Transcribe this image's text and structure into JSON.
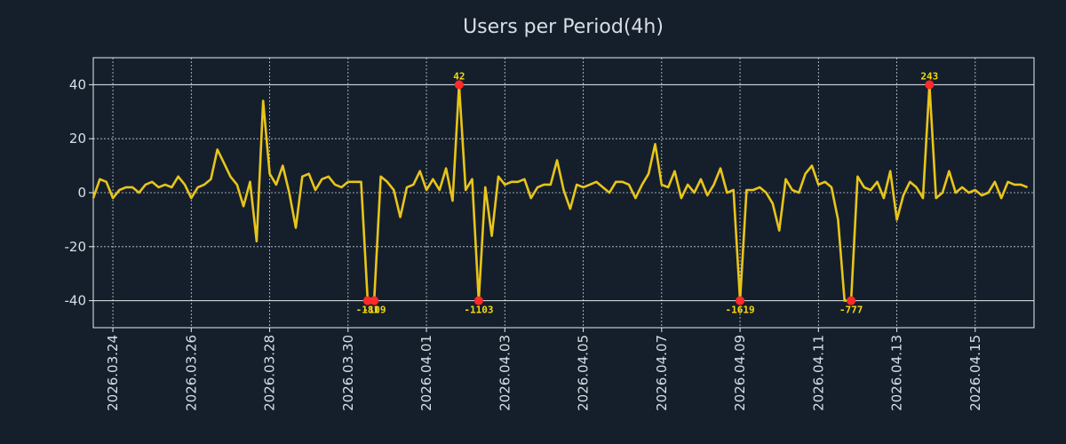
{
  "chart_data": {
    "type": "line",
    "title": "Users per Period(4h)",
    "xlabel": "",
    "ylabel": "",
    "ylim": [
      -50,
      50
    ],
    "yticks": [
      40,
      20,
      0,
      -20,
      -40
    ],
    "ytick_labels": [
      "40",
      "20",
      "0",
      "-20",
      "-40"
    ],
    "xlim": [
      0,
      144
    ],
    "xticks": [
      {
        "index": 3,
        "label": "2026.03.24"
      },
      {
        "index": 15,
        "label": "2026.03.26"
      },
      {
        "index": 27,
        "label": "2026.03.28"
      },
      {
        "index": 39,
        "label": "2026.03.30"
      },
      {
        "index": 51,
        "label": "2026.04.01"
      },
      {
        "index": 63,
        "label": "2026.04.03"
      },
      {
        "index": 75,
        "label": "2026.04.05"
      },
      {
        "index": 87,
        "label": "2026.04.07"
      },
      {
        "index": 99,
        "label": "2026.04.09"
      },
      {
        "index": 111,
        "label": "2026.04.11"
      },
      {
        "index": 123,
        "label": "2026.04.13"
      },
      {
        "index": 135,
        "label": "2026.04.15"
      }
    ],
    "clip": [
      -40,
      40
    ],
    "grid": true,
    "series": [
      {
        "name": "Users per Period(4h)",
        "color": "#e8c51a",
        "values": [
          -2,
          5,
          4,
          -2,
          1,
          2,
          2,
          0,
          3,
          4,
          2,
          3,
          2,
          6,
          3,
          -2,
          2,
          3,
          5,
          16,
          11,
          6,
          3,
          -5,
          4,
          -18,
          34,
          7,
          3,
          10,
          0,
          -13,
          6,
          7,
          1,
          5,
          6,
          3,
          2,
          4,
          4,
          4,
          -40,
          -40,
          6,
          4,
          1,
          -9,
          2,
          3,
          8,
          1,
          5,
          1,
          9,
          -3,
          40,
          1,
          5,
          -40,
          2,
          -16,
          6,
          3,
          4,
          4,
          5,
          -2,
          2,
          3,
          3,
          12,
          1,
          -6,
          3,
          2,
          3,
          4,
          2,
          0,
          4,
          4,
          3,
          -2,
          3,
          7,
          18,
          3,
          2,
          8,
          -2,
          3,
          0,
          5,
          -1,
          3,
          9,
          0,
          1,
          -40,
          1,
          1,
          2,
          0,
          -4,
          -14,
          5,
          1,
          0,
          7,
          10,
          3,
          4,
          2,
          -10,
          -40,
          -40,
          6,
          2,
          1,
          4,
          -2,
          8,
          -10,
          -1,
          4,
          2,
          -2,
          40,
          -2,
          0,
          8,
          0,
          2,
          0,
          1,
          -1,
          0,
          4,
          -2,
          4,
          3,
          3,
          2
        ]
      }
    ],
    "outliers": [
      {
        "index": 42,
        "value": -40,
        "label": "-181"
      },
      {
        "index": 43,
        "value": -40,
        "label": "-109"
      },
      {
        "index": 56,
        "value": 40,
        "label": "42"
      },
      {
        "index": 59,
        "value": -40,
        "label": "-1103"
      },
      {
        "index": 99,
        "value": -40,
        "label": "-1619"
      },
      {
        "index": 116,
        "value": -40,
        "label": "-777"
      },
      {
        "index": 128,
        "value": 40,
        "label": "243"
      }
    ]
  },
  "colors": {
    "background": "#151f2c",
    "axes_border": "#e8ecf0",
    "grid": "#c9ced6",
    "text": "#d8dee6",
    "line": "#e8c51a",
    "marker": "#ff2a2a",
    "outlier_label": "#f5d90a"
  }
}
